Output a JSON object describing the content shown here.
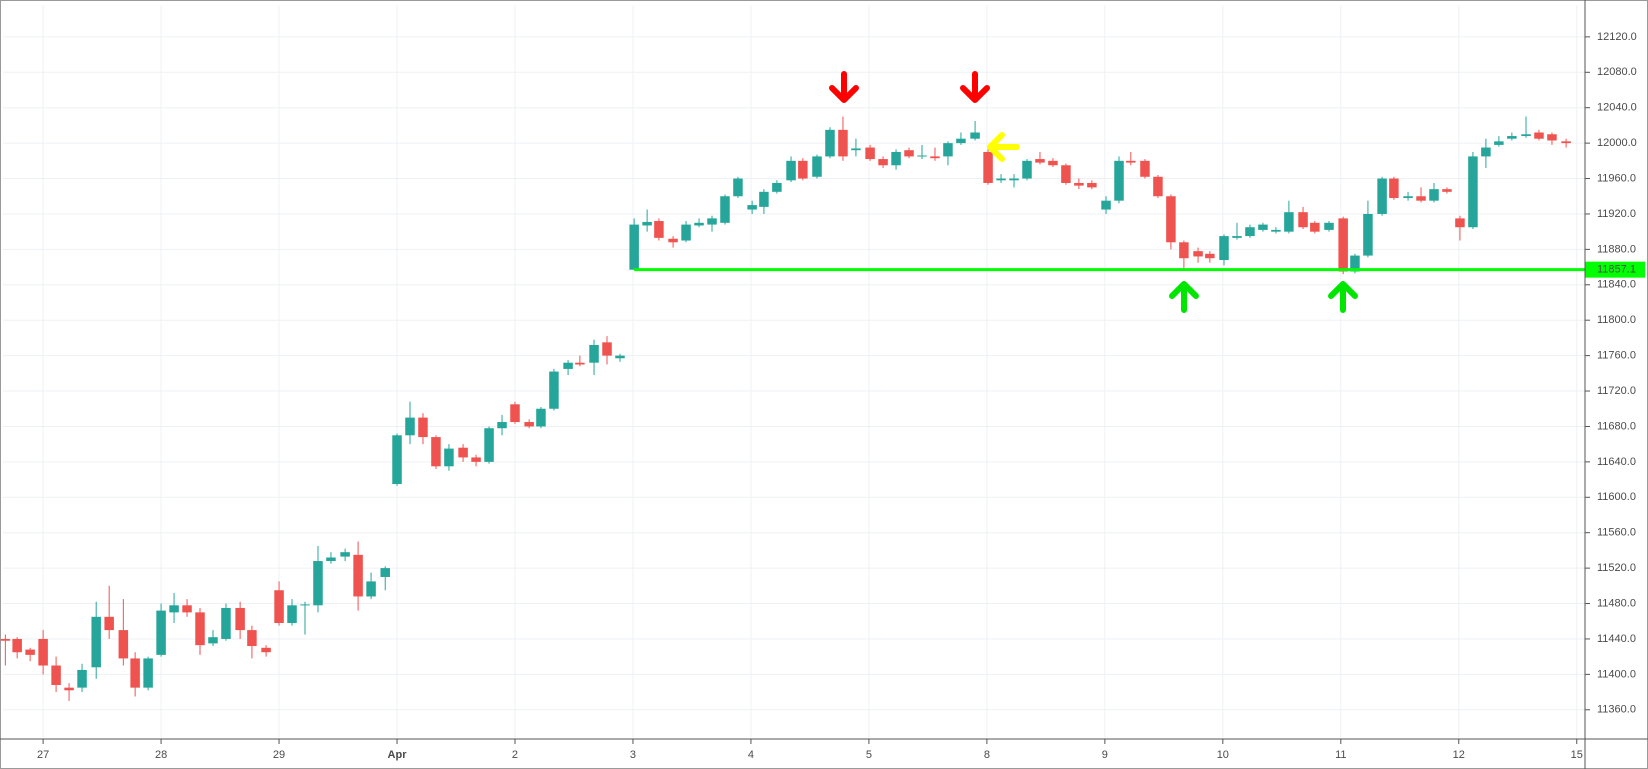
{
  "chart_data": {
    "type": "candlestick",
    "x": [
      -0.32,
      -0.22,
      -0.11,
      0,
      0.11,
      0.22,
      0.33,
      0.45,
      0.56,
      0.68,
      0.78,
      0.89,
      1,
      1.11,
      1.22,
      1.33,
      1.44,
      1.55,
      1.67,
      1.77,
      1.89,
      2,
      2.11,
      2.22,
      2.33,
      2.44,
      2.56,
      2.67,
      2.78,
      2.9,
      3,
      3.11,
      3.22,
      3.33,
      3.44,
      3.56,
      3.67,
      3.78,
      3.89,
      4,
      4.12,
      4.22,
      4.33,
      4.45,
      4.55,
      4.67,
      4.78,
      4.89,
      5.01,
      5.12,
      5.22,
      5.34,
      5.45,
      5.56,
      5.67,
      5.78,
      5.89,
      6.01,
      6.11,
      6.22,
      6.34,
      6.44,
      6.56,
      6.67,
      6.78,
      6.89,
      7.01,
      7.12,
      7.23,
      7.34,
      7.45,
      7.56,
      7.67,
      7.78,
      7.9,
      8.01,
      8.12,
      8.23,
      8.34,
      8.45,
      8.56,
      8.67,
      8.78,
      8.89,
      9.01,
      9.12,
      9.22,
      9.34,
      9.45,
      9.56,
      9.67,
      9.79,
      9.89,
      10.01,
      10.12,
      10.23,
      10.34,
      10.45,
      10.56,
      10.68,
      10.78,
      10.9,
      11.02,
      11.12,
      11.23,
      11.35,
      11.45,
      11.57,
      11.68,
      11.79,
      11.9,
      12.01,
      12.12,
      12.23,
      12.34,
      12.45,
      12.57,
      12.68,
      12.79,
      12.91
    ],
    "ohlc": [
      [
        11440,
        11445,
        11410,
        11438
      ],
      [
        11440,
        11442,
        11418,
        11425
      ],
      [
        11428,
        11430,
        11415,
        11422
      ],
      [
        11440,
        11450,
        11400,
        11410
      ],
      [
        11410,
        11420,
        11380,
        11388
      ],
      [
        11385,
        11390,
        11370,
        11382
      ],
      [
        11385,
        11412,
        11380,
        11405
      ],
      [
        11408,
        11482,
        11395,
        11465
      ],
      [
        11465,
        11500,
        11440,
        11450
      ],
      [
        11450,
        11485,
        11410,
        11418
      ],
      [
        11418,
        11425,
        11375,
        11385
      ],
      [
        11385,
        11420,
        11382,
        11418
      ],
      [
        11422,
        11480,
        11420,
        11472
      ],
      [
        11470,
        11492,
        11458,
        11478
      ],
      [
        11478,
        11485,
        11465,
        11470
      ],
      [
        11470,
        11475,
        11422,
        11433
      ],
      [
        11435,
        11450,
        11432,
        11442
      ],
      [
        11440,
        11480,
        11438,
        11475
      ],
      [
        11475,
        11482,
        11440,
        11450
      ],
      [
        11450,
        11455,
        11418,
        11432
      ],
      [
        11430,
        11433,
        11420,
        11425
      ],
      [
        11495,
        11505,
        11455,
        11458
      ],
      [
        11458,
        11485,
        11455,
        11478
      ],
      [
        11478,
        11482,
        11445,
        11479
      ],
      [
        11478,
        11545,
        11470,
        11528
      ],
      [
        11528,
        11538,
        11525,
        11532
      ],
      [
        11533,
        11542,
        11528,
        11538
      ],
      [
        11535,
        11550,
        11472,
        11488
      ],
      [
        11488,
        11515,
        11485,
        11505
      ],
      [
        11510,
        11522,
        11495,
        11520
      ],
      [
        11615,
        11672,
        11613,
        11670
      ],
      [
        11670,
        11708,
        11660,
        11690
      ],
      [
        11690,
        11695,
        11660,
        11668
      ],
      [
        11668,
        11670,
        11632,
        11635
      ],
      [
        11635,
        11660,
        11630,
        11655
      ],
      [
        11656,
        11660,
        11640,
        11645
      ],
      [
        11645,
        11648,
        11635,
        11640
      ],
      [
        11640,
        11680,
        11638,
        11678
      ],
      [
        11678,
        11693,
        11670,
        11685
      ],
      [
        11705,
        11708,
        11683,
        11685
      ],
      [
        11685,
        11688,
        11678,
        11680
      ],
      [
        11680,
        11702,
        11678,
        11700
      ],
      [
        11700,
        11745,
        11698,
        11742
      ],
      [
        11745,
        11755,
        11738,
        11752
      ],
      [
        11752,
        11760,
        11748,
        11750
      ],
      [
        11752,
        11778,
        11738,
        11772
      ],
      [
        11775,
        11782,
        11750,
        11760
      ],
      [
        11757,
        11762,
        11753,
        11760
      ],
      [
        11857,
        11915,
        11857,
        11908
      ],
      [
        11907,
        11925,
        11900,
        11911
      ],
      [
        11912,
        11915,
        11890,
        11893
      ],
      [
        11892,
        11895,
        11882,
        11888
      ],
      [
        11890,
        11912,
        11888,
        11908
      ],
      [
        11907,
        11915,
        11905,
        11910
      ],
      [
        11908,
        11918,
        11900,
        11915
      ],
      [
        11910,
        11942,
        11908,
        11940
      ],
      [
        11940,
        11962,
        11938,
        11960
      ],
      [
        11925,
        11935,
        11920,
        11930
      ],
      [
        11928,
        11948,
        11920,
        11945
      ],
      [
        11945,
        11958,
        11943,
        11955
      ],
      [
        11958,
        11985,
        11956,
        11980
      ],
      [
        11980,
        11983,
        11958,
        11960
      ],
      [
        11962,
        11987,
        11960,
        11985
      ],
      [
        11985,
        12018,
        11983,
        12015
      ],
      [
        12015,
        12030,
        11980,
        11985
      ],
      [
        11992,
        12005,
        11985,
        11994
      ],
      [
        11995,
        11998,
        11980,
        11982
      ],
      [
        11982,
        11985,
        11972,
        11975
      ],
      [
        11975,
        11993,
        11970,
        11990
      ],
      [
        11992,
        11995,
        11983,
        11985
      ],
      [
        11985,
        11998,
        11982,
        11986
      ],
      [
        11985,
        11995,
        11980,
        11983
      ],
      [
        11985,
        12002,
        11975,
        12000
      ],
      [
        12000,
        12012,
        11998,
        12005
      ],
      [
        12005,
        12025,
        12003,
        12012
      ],
      [
        11990,
        11993,
        11953,
        11955
      ],
      [
        11958,
        11965,
        11955,
        11960
      ],
      [
        11958,
        11965,
        11950,
        11960
      ],
      [
        11960,
        11982,
        11958,
        11980
      ],
      [
        11982,
        11990,
        11976,
        11978
      ],
      [
        11980,
        11983,
        11973,
        11975
      ],
      [
        11975,
        11977,
        11953,
        11955
      ],
      [
        11955,
        11960,
        11948,
        11952
      ],
      [
        11955,
        11958,
        11948,
        11950
      ],
      [
        11925,
        11940,
        11920,
        11935
      ],
      [
        11935,
        11985,
        11932,
        11980
      ],
      [
        11980,
        11990,
        11975,
        11978
      ],
      [
        11980,
        11982,
        11960,
        11962
      ],
      [
        11962,
        11964,
        11938,
        11940
      ],
      [
        11940,
        11942,
        11880,
        11888
      ],
      [
        11888,
        11890,
        11858,
        11870
      ],
      [
        11878,
        11882,
        11865,
        11872
      ],
      [
        11875,
        11878,
        11865,
        11870
      ],
      [
        11868,
        11897,
        11862,
        11895
      ],
      [
        11893,
        11910,
        11891,
        11895
      ],
      [
        11895,
        11908,
        11893,
        11905
      ],
      [
        11902,
        11910,
        11900,
        11908
      ],
      [
        11900,
        11905,
        11898,
        11902
      ],
      [
        11900,
        11935,
        11898,
        11922
      ],
      [
        11922,
        11928,
        11903,
        11905
      ],
      [
        11910,
        11912,
        11898,
        11900
      ],
      [
        11902,
        11912,
        11900,
        11910
      ],
      [
        11915,
        11917,
        11852,
        11855
      ],
      [
        11855,
        11875,
        11853,
        11873
      ],
      [
        11873,
        11935,
        11871,
        11920
      ],
      [
        11920,
        11962,
        11918,
        11960
      ],
      [
        11960,
        11962,
        11936,
        11938
      ],
      [
        11938,
        11945,
        11935,
        11940
      ],
      [
        11940,
        11950,
        11933,
        11935
      ],
      [
        11935,
        11955,
        11933,
        11948
      ],
      [
        11948,
        11950,
        11943,
        11945
      ],
      [
        11915,
        11918,
        11890,
        11905
      ],
      [
        11905,
        11990,
        11903,
        11985
      ],
      [
        11985,
        12005,
        11972,
        11995
      ],
      [
        11998,
        12008,
        11996,
        12002
      ],
      [
        12005,
        12012,
        12003,
        12008
      ],
      [
        12008,
        12030,
        12006,
        12010
      ],
      [
        12012,
        12015,
        12003,
        12005
      ],
      [
        12010,
        12012,
        11998,
        12003
      ],
      [
        12002,
        12005,
        11995,
        12000
      ]
    ],
    "up_color": "#26a69a",
    "down_color": "#ef5350",
    "level": 11857.1,
    "level_color": "#00ff00",
    "xlim": [
      -0.34,
      13.07
    ],
    "ylim": [
      11327,
      12156
    ],
    "xticks": [
      {
        "value": 0,
        "label": "27"
      },
      {
        "value": 1,
        "label": "28"
      },
      {
        "value": 2,
        "label": "29"
      },
      {
        "value": 3,
        "label": "Apr"
      },
      {
        "value": 4,
        "label": "2"
      },
      {
        "value": 5,
        "label": "3"
      },
      {
        "value": 6,
        "label": "4"
      },
      {
        "value": 7,
        "label": "5"
      },
      {
        "value": 8,
        "label": "8"
      },
      {
        "value": 9,
        "label": "9"
      },
      {
        "value": 10,
        "label": "10"
      },
      {
        "value": 11,
        "label": "11"
      },
      {
        "value": 12,
        "label": "12"
      },
      {
        "value": 13,
        "label": "15"
      }
    ],
    "yticks": [
      {
        "value": 11360,
        "label": "11360.0"
      },
      {
        "value": 11400,
        "label": "11400.0"
      },
      {
        "value": 11440,
        "label": "11440.0"
      },
      {
        "value": 11480,
        "label": "11480.0"
      },
      {
        "value": 11520,
        "label": "11520.0"
      },
      {
        "value": 11560,
        "label": "11560.0"
      },
      {
        "value": 11600,
        "label": "11600.0"
      },
      {
        "value": 11640,
        "label": "11640.0"
      },
      {
        "value": 11680,
        "label": "11680.0"
      },
      {
        "value": 11720,
        "label": "11720.0"
      },
      {
        "value": 11760,
        "label": "11760.0"
      },
      {
        "value": 11800,
        "label": "11800.0"
      },
      {
        "value": 11840,
        "label": "11840.0"
      },
      {
        "value": 11880,
        "label": "11880.0"
      },
      {
        "value": 11920,
        "label": "11920.0"
      },
      {
        "value": 11960,
        "label": "11960.0"
      },
      {
        "value": 12000,
        "label": "12000.0"
      },
      {
        "value": 12040,
        "label": "12040.0"
      },
      {
        "value": 12080,
        "label": "12080.0"
      },
      {
        "value": 12120,
        "label": "12120.0"
      }
    ],
    "grid": true
  }
}
